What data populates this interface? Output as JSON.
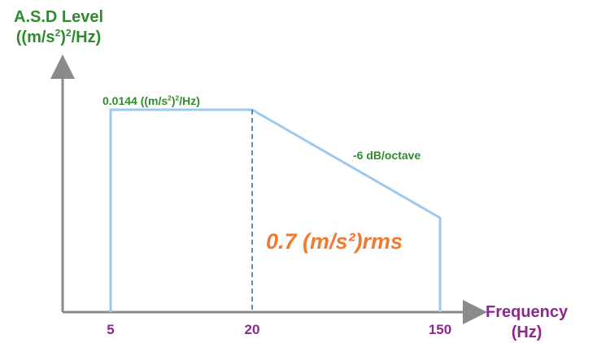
{
  "y_axis": {
    "line1": "A.S.D Level",
    "line2_pre": "((m/s",
    "line2_mid": ")",
    "line2_post": "/Hz)",
    "sup": "2"
  },
  "x_axis": {
    "line1": "Frequency",
    "line2": "(Hz)"
  },
  "ticks": [
    "5",
    "20",
    "150"
  ],
  "level_label": {
    "pre": "0.0144 ((m/s",
    "mid": ")",
    "post": "/Hz)",
    "sup": "2"
  },
  "slope_label": "-6 dB/octave",
  "rms_label": "0.7 (m/s²)rms",
  "colors": {
    "profile": "#9cc8f2",
    "axis": "#8a8a8a",
    "green": "#2e8b2e",
    "purple": "#8a2a8a",
    "orange": "#f07a30"
  }
}
